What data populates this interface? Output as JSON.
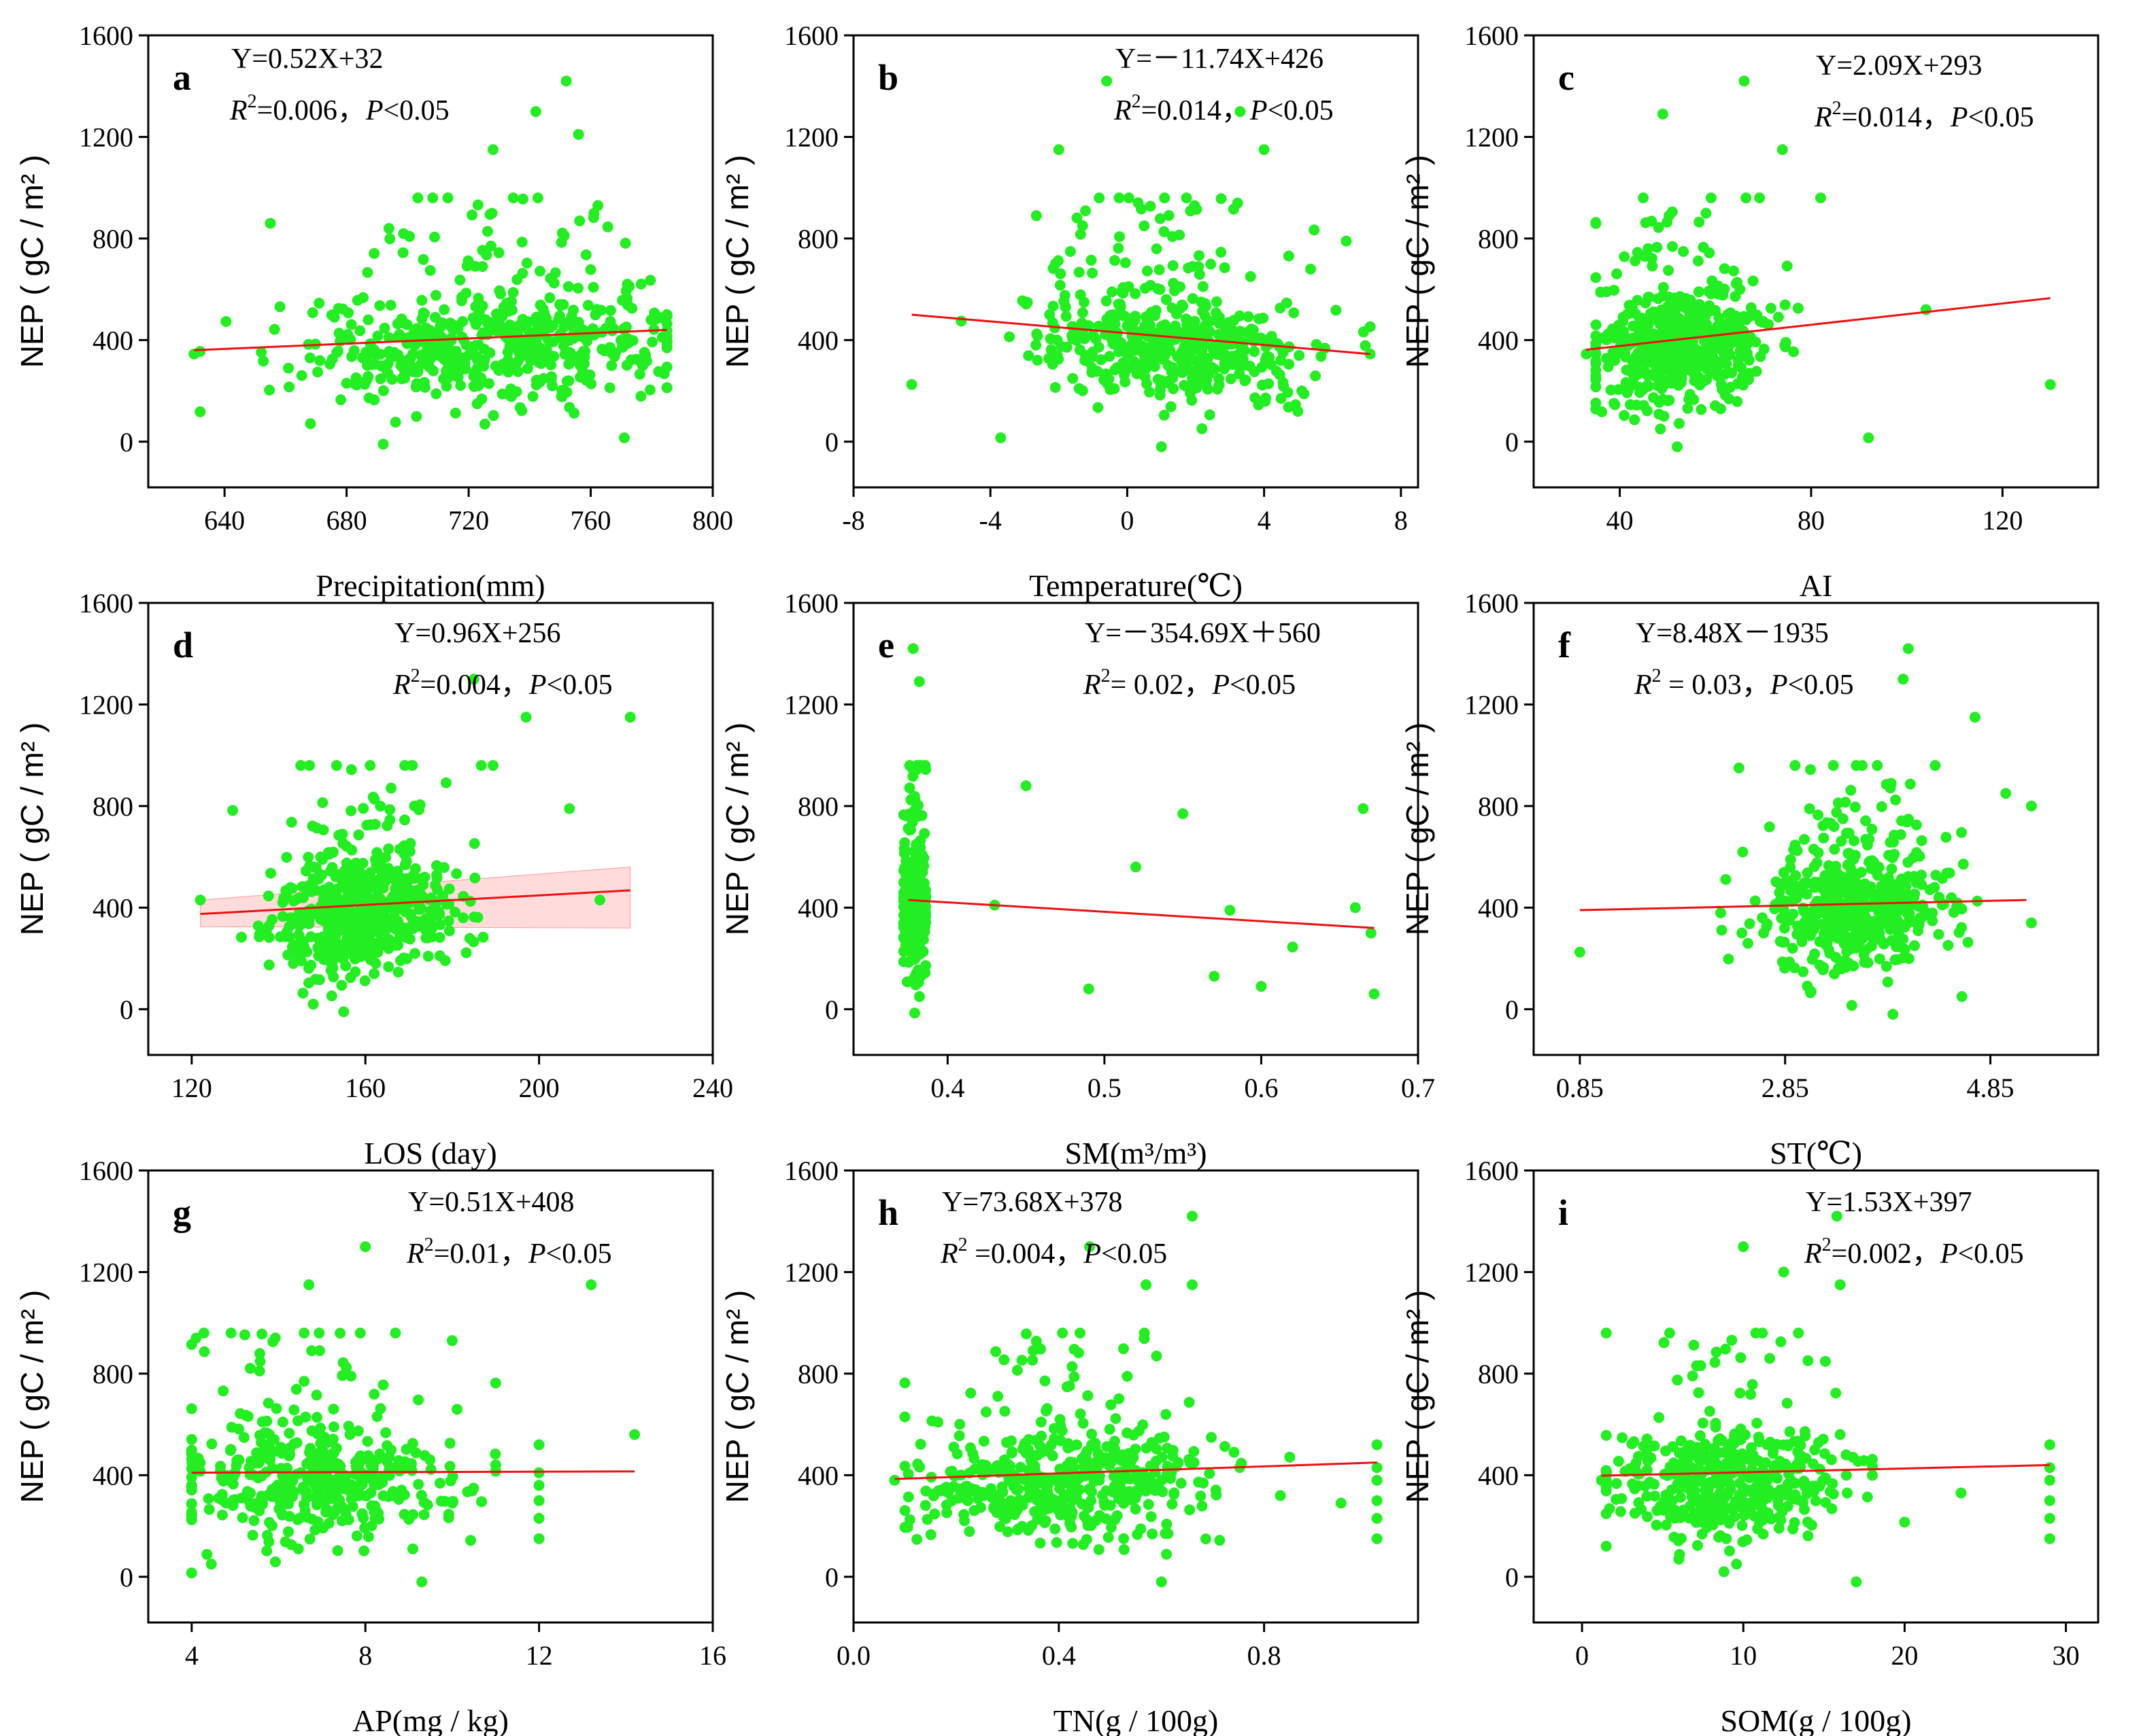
{
  "figure": {
    "point_color": "#22ee22",
    "fit_color": "#ee1111",
    "band_color": "#ff9999"
  },
  "chart_data": [
    {
      "type": "scatter",
      "panel": "a",
      "title_equation": "Y=0.52X+32",
      "stats_prefix": "=0.006，",
      "stats_p": "<0.05",
      "xlabel": "Precipitation(mm)",
      "ylabel": "NEP ( gC / m² )",
      "xlim": [
        615,
        800
      ],
      "ylim": [
        -180,
        1600
      ],
      "xticks": [
        640,
        680,
        720,
        760,
        800
      ],
      "xtick_labels": [
        "640",
        "680",
        "720",
        "760",
        "800"
      ],
      "yticks": [
        0,
        400,
        800,
        1200,
        1600
      ],
      "ytick_labels": [
        "0",
        "400",
        "800",
        "1200",
        "1600"
      ],
      "fit": {
        "x": [
          630,
          785
        ],
        "y": [
          360,
          440
        ]
      },
      "points_sample": [
        [
          630,
          345
        ],
        [
          655,
          860
        ],
        [
          668,
          330
        ],
        [
          680,
          230
        ],
        [
          692,
          -10
        ],
        [
          712,
          520
        ],
        [
          728,
          1150
        ],
        [
          742,
          1300
        ],
        [
          752,
          1420
        ],
        [
          756,
          1210
        ],
        [
          772,
          620
        ],
        [
          771,
          15
        ],
        [
          781,
          480
        ],
        [
          740,
          400
        ],
        [
          718,
          330
        ]
      ],
      "cloud": {
        "x_mean": 728,
        "x_sd": 30,
        "x_range": [
          632,
          785
        ],
        "count": 520
      }
    },
    {
      "type": "scatter",
      "panel": "b",
      "title_equation": "Y=－11.74X+426",
      "stats_prefix": "=0.014，",
      "stats_p": "<0.05",
      "xlabel": "Temperature(℃)",
      "ylabel": "NEP ( gC / m² )",
      "xlim": [
        -8,
        8.5
      ],
      "ylim": [
        -180,
        1600
      ],
      "xticks": [
        -8,
        -4,
        0,
        4,
        8
      ],
      "xtick_labels": [
        "-8",
        "-4",
        "0",
        "4",
        "8"
      ],
      "yticks": [
        0,
        400,
        800,
        1200,
        1600
      ],
      "ytick_labels": [
        "0",
        "400",
        "800",
        "1200",
        "1600"
      ],
      "fit": {
        "x": [
          -6.3,
          7.1
        ],
        "y": [
          500,
          345
        ]
      },
      "points_sample": [
        [
          -6.3,
          225
        ],
        [
          -3.7,
          15
        ],
        [
          -0.6,
          1420
        ],
        [
          -2.0,
          1150
        ],
        [
          3.3,
          1300
        ],
        [
          4.0,
          1150
        ],
        [
          7.1,
          345
        ],
        [
          6.4,
          790
        ],
        [
          1.0,
          -20
        ],
        [
          2.0,
          380
        ],
        [
          -1.0,
          420
        ]
      ],
      "cloud": {
        "x_mean": 1.5,
        "x_sd": 1.9,
        "x_range": [
          -6.3,
          7.1
        ],
        "count": 520
      }
    },
    {
      "type": "scatter",
      "panel": "c",
      "title_equation": "Y=2.09X+293",
      "stats_prefix": "=0.014，",
      "stats_p": "<0.05",
      "xlabel": "AI",
      "ylabel": "NEP ( gC / m² )",
      "xlim": [
        22,
        140
      ],
      "ylim": [
        -180,
        1600
      ],
      "xticks": [
        40,
        80,
        120
      ],
      "xtick_labels": [
        "40",
        "80",
        "120"
      ],
      "yticks": [
        0,
        400,
        800,
        1200,
        1600
      ],
      "ytick_labels": [
        "0",
        "400",
        "800",
        "1200",
        "1600"
      ],
      "fit": {
        "x": [
          33,
          130
        ],
        "y": [
          362,
          565
        ]
      },
      "points_sample": [
        [
          33,
          345
        ],
        [
          66,
          1420
        ],
        [
          49,
          1290
        ],
        [
          74,
          1150
        ],
        [
          82,
          960
        ],
        [
          92,
          15
        ],
        [
          130,
          225
        ],
        [
          104,
          520
        ],
        [
          52,
          -20
        ],
        [
          55,
          350
        ],
        [
          60,
          420
        ]
      ],
      "cloud": {
        "x_mean": 52,
        "x_sd": 9,
        "x_range": [
          35,
          105
        ],
        "count": 520
      }
    },
    {
      "type": "scatter",
      "panel": "d",
      "title_equation": "Y=0.96X+256",
      "stats_prefix": "=0.004，",
      "stats_p": "<0.05",
      "xlabel": "LOS (day)",
      "ylabel": "NEP ( gC / m² )",
      "xlim": [
        110,
        240
      ],
      "ylim": [
        -180,
        1600
      ],
      "xticks": [
        120,
        160,
        200,
        240
      ],
      "xtick_labels": [
        "120",
        "160",
        "200",
        "240"
      ],
      "yticks": [
        0,
        400,
        800,
        1200,
        1600
      ],
      "ytick_labels": [
        "0",
        "400",
        "800",
        "1200",
        "1600"
      ],
      "fit": {
        "x": [
          122,
          221
        ],
        "y": [
          375,
          468
        ]
      },
      "band": {
        "x": [
          122,
          221
        ],
        "lower": [
          325,
          320
        ],
        "upper": [
          430,
          560
        ]
      },
      "points_sample": [
        [
          122,
          430
        ],
        [
          185,
          1300
        ],
        [
          221,
          1150
        ],
        [
          197,
          1150
        ],
        [
          207,
          790
        ],
        [
          214,
          430
        ],
        [
          148,
          20
        ],
        [
          155,
          -10
        ],
        [
          160,
          350
        ],
        [
          165,
          420
        ]
      ],
      "cloud": {
        "x_mean": 160,
        "x_sd": 11,
        "x_range": [
          124,
          198
        ],
        "count": 520
      }
    },
    {
      "type": "scatter",
      "panel": "e",
      "title_equation": "Y=－354.69X＋560",
      "stats_prefix": "= 0.02，",
      "stats_p": "<0.05",
      "xlabel": "SM(m³/m³)",
      "ylabel": "NEP ( gC / m² )",
      "xlim": [
        0.34,
        0.7
      ],
      "ylim": [
        -180,
        1600
      ],
      "xticks": [
        0.4,
        0.5,
        0.6,
        0.7
      ],
      "xtick_labels": [
        "0.4",
        "0.5",
        "0.6",
        "0.7"
      ],
      "yticks": [
        0,
        400,
        800,
        1200,
        1600
      ],
      "ytick_labels": [
        "0",
        "400",
        "800",
        "1200",
        "1600"
      ],
      "fit": {
        "x": [
          0.375,
          0.672
        ],
        "y": [
          430,
          320
        ]
      },
      "points_sample": [
        [
          0.378,
          1420
        ],
        [
          0.382,
          1290
        ],
        [
          0.379,
          -15
        ],
        [
          0.45,
          880
        ],
        [
          0.55,
          770
        ],
        [
          0.665,
          790
        ],
        [
          0.672,
          60
        ],
        [
          0.49,
          80
        ],
        [
          0.6,
          90
        ],
        [
          0.57,
          130
        ],
        [
          0.43,
          410
        ],
        [
          0.52,
          560
        ],
        [
          0.58,
          390
        ],
        [
          0.62,
          245
        ],
        [
          0.66,
          400
        ],
        [
          0.67,
          300
        ]
      ],
      "cloud": {
        "x_mean": 0.379,
        "x_sd": 0.004,
        "x_range": [
          0.372,
          0.386
        ],
        "count": 360
      }
    },
    {
      "type": "scatter",
      "panel": "f",
      "title_equation": "Y=8.48X－1935",
      "stats_prefix": " = 0.03，",
      "stats_p": "<0.05",
      "xlabel": "ST(℃)",
      "ylabel": "NEP ( gC / m² )",
      "xlim": [
        0.4,
        5.9
      ],
      "ylim": [
        -180,
        1600
      ],
      "xticks": [
        0.85,
        2.85,
        4.85
      ],
      "xtick_labels": [
        "0.85",
        "2.85",
        "4.85"
      ],
      "yticks": [
        0,
        400,
        800,
        1200,
        1600
      ],
      "ytick_labels": [
        "0",
        "400",
        "800",
        "1200",
        "1600"
      ],
      "fit": {
        "x": [
          0.85,
          5.2
        ],
        "y": [
          390,
          430
        ]
      },
      "points_sample": [
        [
          0.85,
          225
        ],
        [
          4.05,
          1420
        ],
        [
          4.0,
          1300
        ],
        [
          4.7,
          1150
        ],
        [
          5.0,
          850
        ],
        [
          5.25,
          340
        ],
        [
          5.25,
          800
        ],
        [
          3.5,
          15
        ],
        [
          3.9,
          -20
        ],
        [
          2.4,
          950
        ],
        [
          3.6,
          350
        ]
      ],
      "cloud": {
        "x_mean": 3.55,
        "x_sd": 0.45,
        "x_range": [
          1.2,
          4.8
        ],
        "count": 520
      }
    },
    {
      "type": "scatter",
      "panel": "g",
      "title_equation": "Y=0.51X+408",
      "stats_prefix": "=0.01，",
      "stats_p": "<0.05",
      "xlabel": "AP(mg / kg)",
      "ylabel": "NEP ( gC / m² )",
      "xlim": [
        3,
        16
      ],
      "ylim": [
        -180,
        1600
      ],
      "xticks": [
        4,
        8,
        12,
        16
      ],
      "xtick_labels": [
        "4",
        "8",
        "12",
        "16"
      ],
      "yticks": [
        0,
        400,
        800,
        1200,
        1600
      ],
      "ytick_labels": [
        "0",
        "400",
        "800",
        "1200",
        "1600"
      ],
      "fit": {
        "x": [
          4,
          14.2
        ],
        "y": [
          410,
          415
        ]
      },
      "points_sample": [
        [
          4.0,
          15
        ],
        [
          8.0,
          1300
        ],
        [
          6.7,
          1150
        ],
        [
          13.2,
          1150
        ],
        [
          14.2,
          560
        ],
        [
          9.3,
          -20
        ],
        [
          4.1,
          940
        ],
        [
          10.0,
          930
        ],
        [
          12,
          150
        ],
        [
          12,
          230
        ],
        [
          12,
          300
        ],
        [
          12,
          360
        ],
        [
          12,
          410
        ],
        [
          12,
          520
        ]
      ],
      "cloud": {
        "x_mean": 6.8,
        "x_sd": 1.7,
        "x_range": [
          4.0,
          11.0
        ],
        "count": 430
      }
    },
    {
      "type": "scatter",
      "panel": "h",
      "title_equation": "Y=73.68X+378",
      "stats_prefix": " =0.004，",
      "stats_p": "<0.05",
      "xlabel": "TN(g / 100g)",
      "ylabel": "NEP ( gC / m² )",
      "xlim": [
        0,
        1.1
      ],
      "ylim": [
        -180,
        1600
      ],
      "xticks": [
        0.0,
        0.4,
        0.8
      ],
      "xtick_labels": [
        "0.0",
        "0.4",
        "0.8"
      ],
      "yticks": [
        0,
        400,
        800,
        1200,
        1600
      ],
      "ytick_labels": [
        "0",
        "400",
        "800",
        "1200",
        "1600"
      ],
      "fit": {
        "x": [
          0.08,
          1.02
        ],
        "y": [
          385,
          450
        ]
      },
      "points_sample": [
        [
          0.08,
          380
        ],
        [
          0.66,
          1420
        ],
        [
          0.46,
          1300
        ],
        [
          0.57,
          1150
        ],
        [
          0.66,
          1150
        ],
        [
          0.6,
          -20
        ],
        [
          1.02,
          150
        ],
        [
          1.02,
          230
        ],
        [
          1.02,
          300
        ],
        [
          1.02,
          380
        ],
        [
          1.02,
          430
        ],
        [
          1.02,
          520
        ],
        [
          0.95,
          290
        ]
      ],
      "cloud": {
        "x_mean": 0.42,
        "x_sd": 0.15,
        "x_range": [
          0.1,
          0.85
        ],
        "count": 450
      }
    },
    {
      "type": "scatter",
      "panel": "i",
      "title_equation": "Y=1.53X+397",
      "stats_prefix": "=0.002，",
      "stats_p": "<0.05",
      "xlabel": "SOM(g / 100g)",
      "ylabel": "NEP ( gC / m² )",
      "xlim": [
        -3,
        32
      ],
      "ylim": [
        -180,
        1600
      ],
      "xticks": [
        0,
        10,
        20,
        30
      ],
      "xtick_labels": [
        "0",
        "10",
        "20",
        "30"
      ],
      "yticks": [
        0,
        400,
        800,
        1200,
        1600
      ],
      "ytick_labels": [
        "0",
        "400",
        "800",
        "1200",
        "1600"
      ],
      "fit": {
        "x": [
          1.2,
          29
        ],
        "y": [
          398,
          440
        ]
      },
      "points_sample": [
        [
          1.2,
          380
        ],
        [
          15.8,
          1420
        ],
        [
          10,
          1300
        ],
        [
          12.5,
          1200
        ],
        [
          16,
          1150
        ],
        [
          17,
          -20
        ],
        [
          8.8,
          20
        ],
        [
          29,
          150
        ],
        [
          29,
          230
        ],
        [
          29,
          300
        ],
        [
          29,
          380
        ],
        [
          29,
          430
        ],
        [
          29,
          520
        ],
        [
          20,
          215
        ],
        [
          23.5,
          330
        ]
      ],
      "cloud": {
        "x_mean": 8.8,
        "x_sd": 3.6,
        "x_range": [
          1.5,
          18.0
        ],
        "count": 450
      }
    }
  ]
}
